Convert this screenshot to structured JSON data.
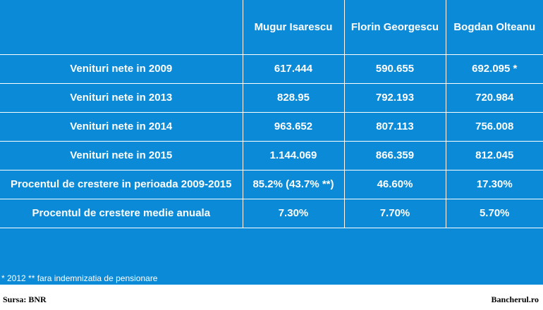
{
  "columns": [
    "",
    "Mugur Isarescu",
    "Florin Georgescu",
    "Bogdan Olteanu"
  ],
  "rows": [
    {
      "label": "Venituri nete in 2009",
      "values": [
        "617.444",
        "590.655",
        "692.095 *"
      ]
    },
    {
      "label": "Venituri nete in 2013",
      "values": [
        "828.95",
        "792.193",
        "720.984"
      ]
    },
    {
      "label": "Venituri nete in 2014",
      "values": [
        "963.652",
        "807.113",
        "756.008"
      ]
    },
    {
      "label": "Venituri nete in 2015",
      "values": [
        "1.144.069",
        "866.359",
        "812.045"
      ]
    },
    {
      "label": "Procentul de crestere in perioada 2009-2015",
      "values": [
        "85.2% (43.7% **)",
        "46.60%",
        "17.30%"
      ]
    },
    {
      "label": "Procentul de crestere medie anuala",
      "values": [
        "7.30%",
        "7.70%",
        "5.70%"
      ]
    }
  ],
  "footnote": "* 2012 ** fara indemnizatia de pensionare",
  "source": "Sursa: BNR",
  "brand": "Bancherul.ro",
  "colors": {
    "panel": "#0b8ad8",
    "text": "#ffffff"
  }
}
